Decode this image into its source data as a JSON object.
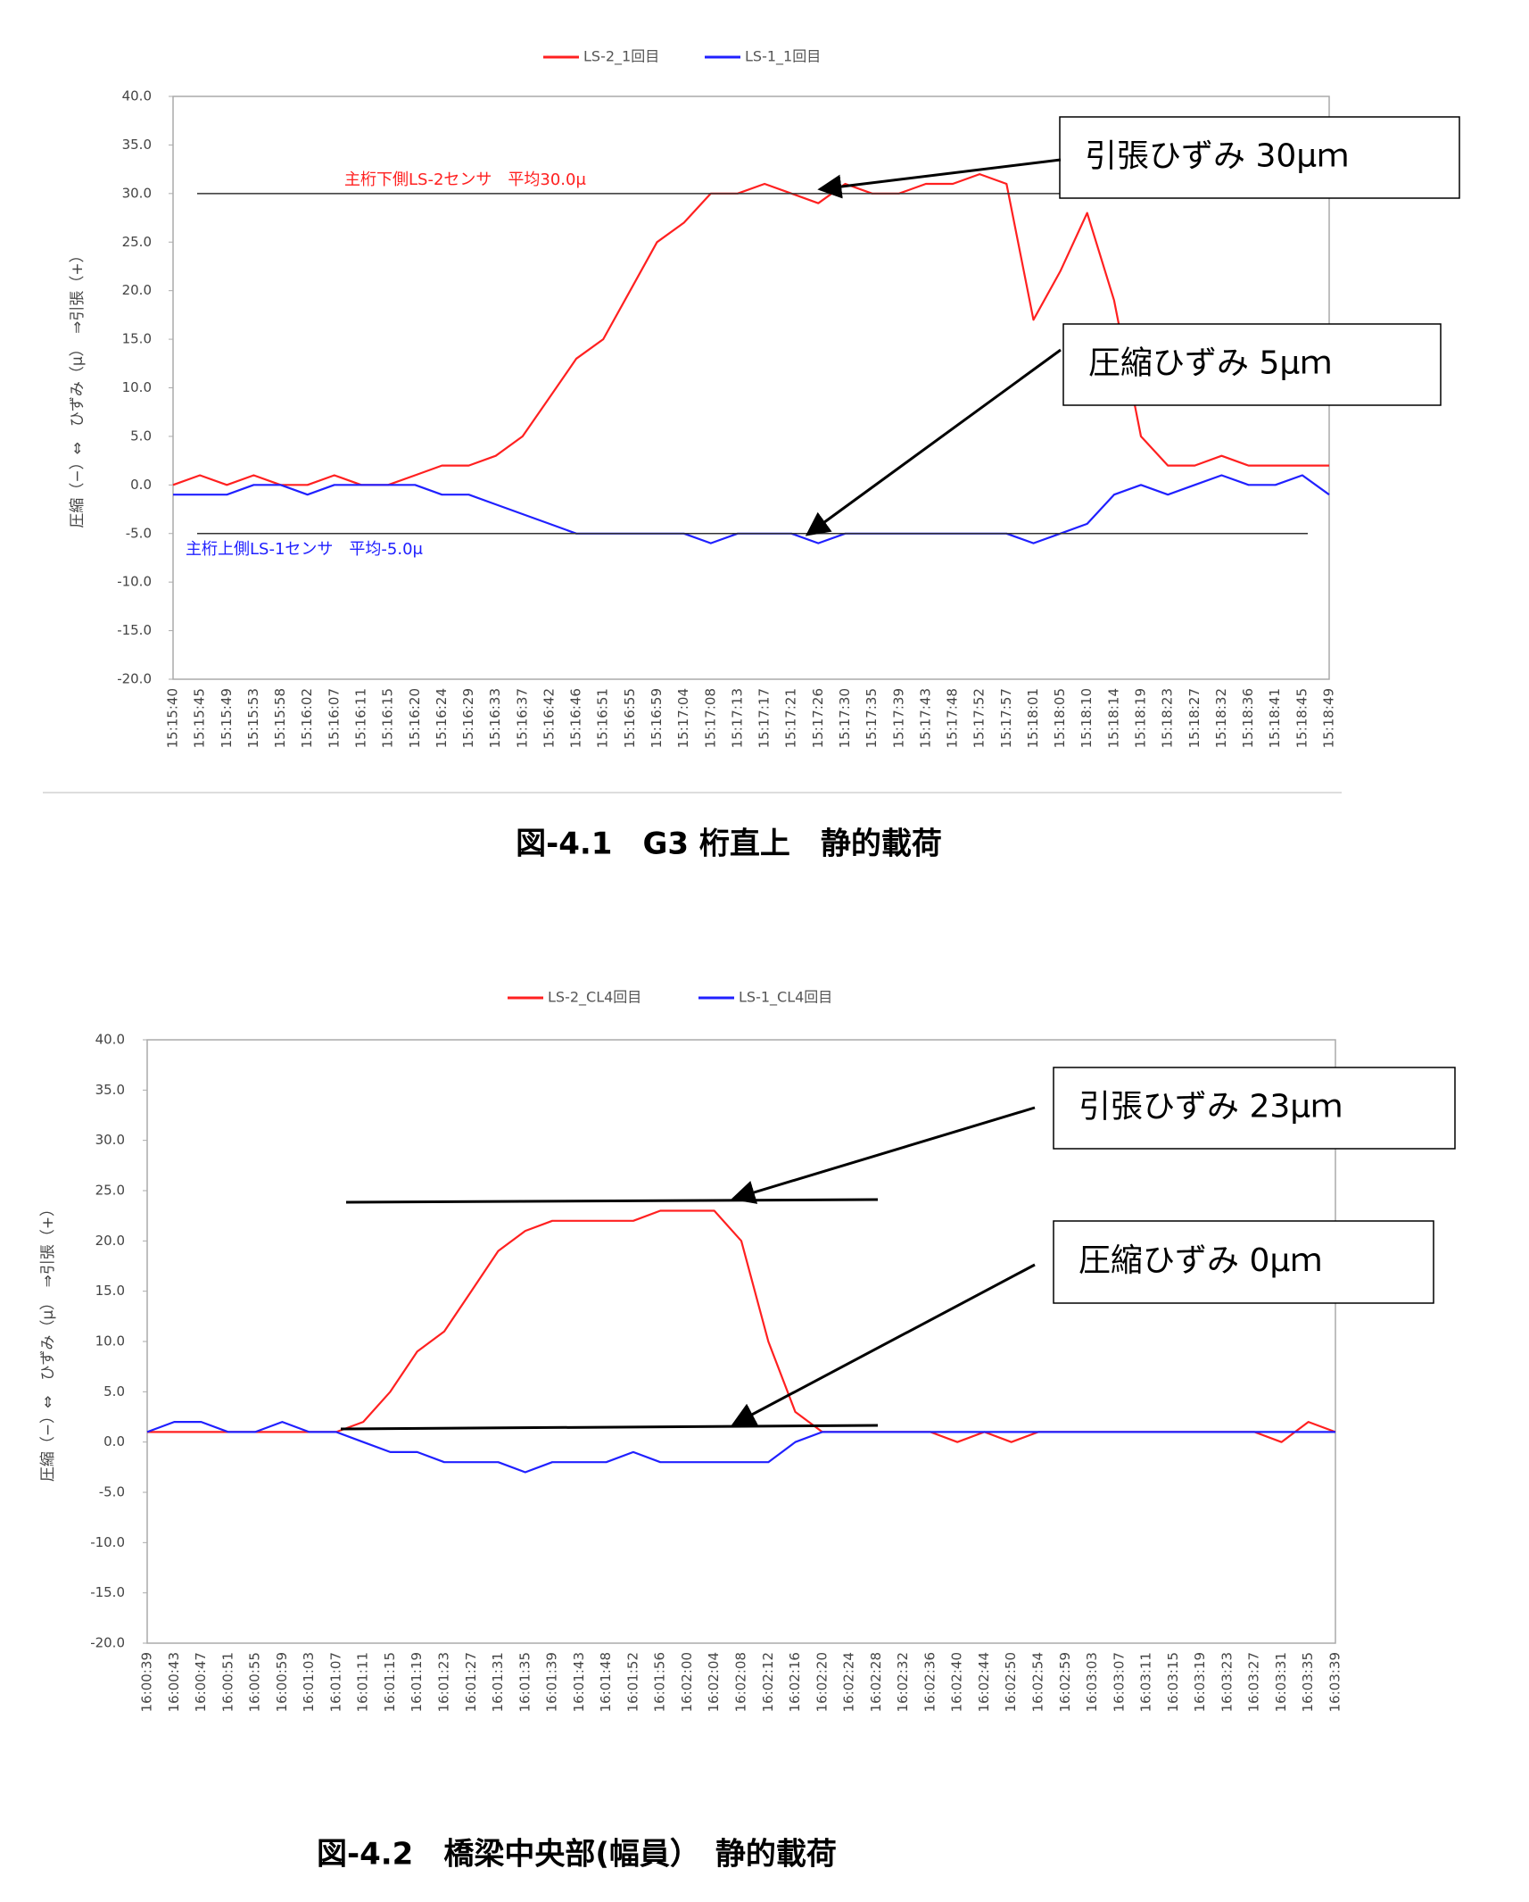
{
  "chart_data": [
    {
      "type": "line",
      "caption": "図-4.1　G3 桁直上　静的載荷",
      "y_label": "圧縮（−）⇔　ひずみ（μ）　⇒引張（+）",
      "categories": [
        "15:15:40",
        "15:15:45",
        "15:15:49",
        "15:15:53",
        "15:15:58",
        "15:16:02",
        "15:16:07",
        "15:16:11",
        "15:16:15",
        "15:16:20",
        "15:16:24",
        "15:16:29",
        "15:16:33",
        "15:16:37",
        "15:16:42",
        "15:16:46",
        "15:16:51",
        "15:16:55",
        "15:16:59",
        "15:17:04",
        "15:17:08",
        "15:17:13",
        "15:17:17",
        "15:17:21",
        "15:17:26",
        "15:17:30",
        "15:17:35",
        "15:17:39",
        "15:17:43",
        "15:17:48",
        "15:17:52",
        "15:17:57",
        "15:18:01",
        "15:18:05",
        "15:18:10",
        "15:18:14",
        "15:18:19",
        "15:18:23",
        "15:18:27",
        "15:18:32",
        "15:18:36",
        "15:18:41",
        "15:18:45",
        "15:18:49"
      ],
      "series": [
        {
          "name": "LS-2_1回目",
          "color": "#ff2020",
          "values": [
            0,
            1,
            0,
            1,
            0,
            0,
            1,
            0,
            0,
            1,
            2,
            2,
            3,
            5,
            9,
            13,
            15,
            20,
            25,
            27,
            30,
            30,
            31,
            30,
            29,
            31,
            30,
            30,
            31,
            31,
            32,
            31,
            17,
            22,
            28,
            19,
            5,
            2,
            2,
            3,
            2,
            2,
            2,
            2
          ]
        },
        {
          "name": "LS-1_1回目",
          "color": "#2020ff",
          "values": [
            -1,
            -1,
            -1,
            0,
            0,
            -1,
            0,
            0,
            0,
            0,
            -1,
            -1,
            -2,
            -3,
            -4,
            -5,
            -5,
            -5,
            -5,
            -5,
            -6,
            -5,
            -5,
            -5,
            -6,
            -5,
            -5,
            -5,
            -5,
            -5,
            -5,
            -5,
            -6,
            -5,
            -4,
            -1,
            0,
            -1,
            0,
            1,
            0,
            0,
            1,
            -1
          ]
        }
      ],
      "reference_lines": [
        {
          "value": 30,
          "label": "主桁下側LS-2センサ　平均30.0μ",
          "color": "#ff2020"
        },
        {
          "value": -5,
          "label": "主桁上側LS-1センサ　平均-5.0μ",
          "color": "#2020ff"
        }
      ],
      "annotations": [
        "引張ひずみ 30μｍ",
        "圧縮ひずみ 5μｍ"
      ],
      "ylim": [
        -20,
        40
      ],
      "yticks": [
        {
          "value": 40,
          "label": "40.0"
        },
        {
          "value": 35,
          "label": "35.0"
        },
        {
          "value": 30,
          "label": "30.0"
        },
        {
          "value": 25,
          "label": "25.0"
        },
        {
          "value": 20,
          "label": "20.0"
        },
        {
          "value": 15,
          "label": "15.0"
        },
        {
          "value": 10,
          "label": "10.0"
        },
        {
          "value": 5,
          "label": "5.0"
        },
        {
          "value": 0,
          "label": "0.0"
        },
        {
          "value": -5,
          "label": "-5.0"
        },
        {
          "value": -10,
          "label": "-10.0"
        },
        {
          "value": -15,
          "label": "-15.0"
        },
        {
          "value": -20,
          "label": "-20.0"
        }
      ],
      "grid": false
    },
    {
      "type": "line",
      "caption": "図-4.2　橋梁中央部(幅員）　静的載荷",
      "y_label": "圧縮（−）⇔　ひずみ（μ）　⇒引張（+）",
      "categories": [
        "16:00:39",
        "16:00:43",
        "16:00:47",
        "16:00:51",
        "16:00:55",
        "16:00:59",
        "16:01:03",
        "16:01:07",
        "16:01:11",
        "16:01:15",
        "16:01:19",
        "16:01:23",
        "16:01:27",
        "16:01:31",
        "16:01:35",
        "16:01:39",
        "16:01:43",
        "16:01:48",
        "16:01:52",
        "16:01:56",
        "16:02:00",
        "16:02:04",
        "16:02:08",
        "16:02:12",
        "16:02:16",
        "16:02:20",
        "16:02:24",
        "16:02:28",
        "16:02:32",
        "16:02:36",
        "16:02:40",
        "16:02:44",
        "16:02:50",
        "16:02:54",
        "16:02:59",
        "16:03:03",
        "16:03:07",
        "16:03:11",
        "16:03:15",
        "16:03:19",
        "16:03:23",
        "16:03:27",
        "16:03:31",
        "16:03:35",
        "16:03:39"
      ],
      "series": [
        {
          "name": "LS-2_CL4回目",
          "color": "#ff2020",
          "values": [
            1,
            1,
            1,
            1,
            1,
            1,
            1,
            1,
            2,
            5,
            9,
            11,
            15,
            19,
            21,
            22,
            22,
            22,
            22,
            23,
            23,
            23,
            20,
            10,
            3,
            1,
            1,
            1,
            1,
            1,
            0,
            1,
            0,
            1,
            1,
            1,
            1,
            1,
            1,
            1,
            1,
            1,
            0,
            2,
            1
          ]
        },
        {
          "name": "LS-1_CL4回目",
          "color": "#2020ff",
          "values": [
            1,
            2,
            2,
            1,
            1,
            2,
            1,
            1,
            0,
            -1,
            -1,
            -2,
            -2,
            -2,
            -3,
            -2,
            -2,
            -2,
            -1,
            -2,
            -2,
            -2,
            -2,
            -2,
            0,
            1,
            1,
            1,
            1,
            1,
            1,
            1,
            1,
            1,
            1,
            1,
            1,
            1,
            1,
            1,
            1,
            1,
            1,
            1,
            1
          ]
        }
      ],
      "annotations": [
        "引張ひずみ 23μｍ",
        "圧縮ひずみ 0μｍ"
      ],
      "ylim": [
        -20,
        40
      ],
      "yticks": [
        {
          "value": 40,
          "label": "40.0"
        },
        {
          "value": 35,
          "label": "35.0"
        },
        {
          "value": 30,
          "label": "30.0"
        },
        {
          "value": 25,
          "label": "25.0"
        },
        {
          "value": 20,
          "label": "20.0"
        },
        {
          "value": 15,
          "label": "15.0"
        },
        {
          "value": 10,
          "label": "10.0"
        },
        {
          "value": 5,
          "label": "5.0"
        },
        {
          "value": 0,
          "label": "0.0"
        },
        {
          "value": -5,
          "label": "-5.0"
        },
        {
          "value": -10,
          "label": "-10.0"
        },
        {
          "value": -15,
          "label": "-15.0"
        },
        {
          "value": -20,
          "label": "-20.0"
        }
      ],
      "grid": false
    }
  ]
}
